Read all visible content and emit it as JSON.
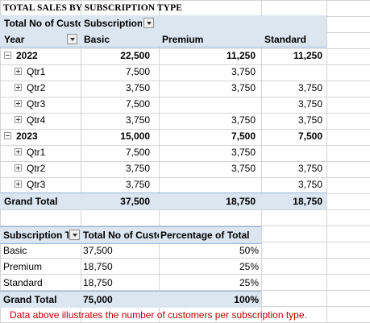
{
  "title": "TOTAL SALES BY SUBSCRIPTION TYPE",
  "pivot1": {
    "values_label": "Total No of Customers",
    "column_field": "Subscription Type",
    "row_field": "Year",
    "columns": [
      "Basic",
      "Premium",
      "Standard"
    ],
    "rows": [
      {
        "label": "2022",
        "level": 0,
        "expander": "minus",
        "values": [
          "22,500",
          "11,250",
          "11,250"
        ]
      },
      {
        "label": "Qtr1",
        "level": 1,
        "expander": "plus",
        "values": [
          "7,500",
          "3,750",
          ""
        ]
      },
      {
        "label": "Qtr2",
        "level": 1,
        "expander": "plus",
        "values": [
          "3,750",
          "3,750",
          "3,750"
        ]
      },
      {
        "label": "Qtr3",
        "level": 1,
        "expander": "plus",
        "values": [
          "7,500",
          "",
          "3,750"
        ]
      },
      {
        "label": "Qtr4",
        "level": 1,
        "expander": "plus",
        "values": [
          "3,750",
          "3,750",
          "3,750"
        ]
      },
      {
        "label": "2023",
        "level": 0,
        "expander": "minus",
        "values": [
          "15,000",
          "7,500",
          "7,500"
        ]
      },
      {
        "label": "Qtr1",
        "level": 1,
        "expander": "plus",
        "values": [
          "7,500",
          "3,750",
          ""
        ]
      },
      {
        "label": "Qtr2",
        "level": 1,
        "expander": "plus",
        "values": [
          "3,750",
          "3,750",
          "3,750"
        ]
      },
      {
        "label": "Qtr3",
        "level": 1,
        "expander": "plus",
        "values": [
          "3,750",
          "",
          "3,750"
        ]
      }
    ],
    "grand_total": {
      "label": "Grand Total",
      "values": [
        "37,500",
        "18,750",
        "18,750"
      ]
    }
  },
  "pivot2": {
    "headers": [
      "Subscription Type",
      "Total No of Customers",
      "Percentage of Total"
    ],
    "rows": [
      {
        "label": "Basic",
        "count": "37,500",
        "pct": "50%"
      },
      {
        "label": "Premium",
        "count": "18,750",
        "pct": "25%"
      },
      {
        "label": "Standard",
        "count": "18,750",
        "pct": "25%"
      }
    ],
    "grand_total": {
      "label": "Grand Total",
      "count": "75,000",
      "pct": "100%"
    }
  },
  "note": "Data above illustrates the number of customers per subscription type.",
  "colors": {
    "header_fill": "#dce6f1",
    "header_line": "#95b3d7",
    "note_text": "#c00000",
    "gridline": "#d4d4d4"
  },
  "icons": {
    "filter_dropdown": "chevron-down-icon",
    "collapse": "minus-box-icon",
    "expand": "plus-box-icon"
  }
}
